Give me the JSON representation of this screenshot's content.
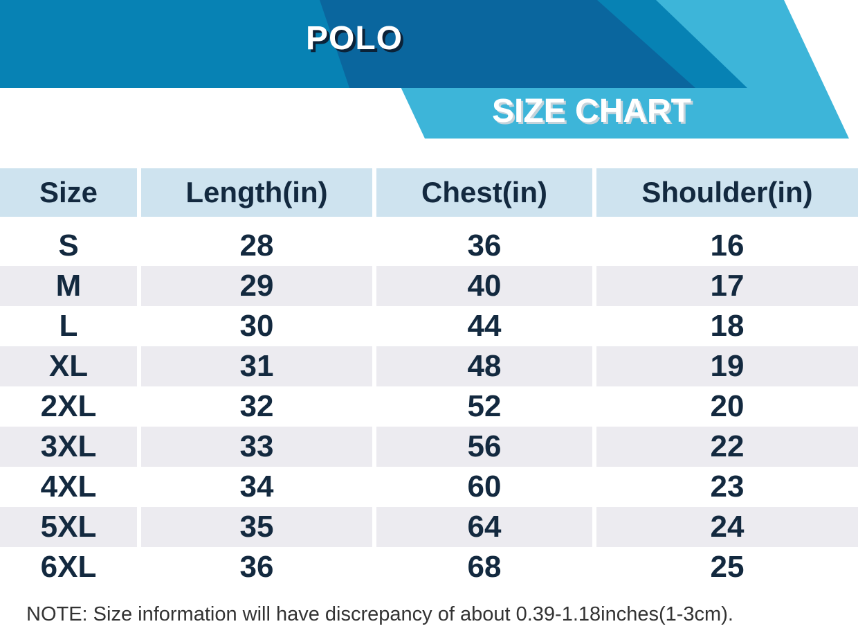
{
  "banner": {
    "brand": "POLO",
    "title": "SIZE CHART"
  },
  "chart_data": {
    "type": "table",
    "title": "SIZE CHART",
    "subtitle": "POLO",
    "columns": [
      "Size",
      "Length(in)",
      "Chest(in)",
      "Shoulder(in)"
    ],
    "rows": [
      [
        "S",
        "28",
        "36",
        "16"
      ],
      [
        "M",
        "29",
        "40",
        "17"
      ],
      [
        "L",
        "30",
        "44",
        "18"
      ],
      [
        "XL",
        "31",
        "48",
        "19"
      ],
      [
        "2XL",
        "32",
        "52",
        "20"
      ],
      [
        "3XL",
        "33",
        "56",
        "22"
      ],
      [
        "4XL",
        "34",
        "60",
        "23"
      ],
      [
        "5XL",
        "35",
        "64",
        "24"
      ],
      [
        "6XL",
        "36",
        "68",
        "25"
      ]
    ],
    "layout": {
      "stripe_pattern": "even rows shaded",
      "header_row_shaded": true,
      "grid": "white column gaps, no borders"
    }
  },
  "note": "NOTE: Size information will have discrepancy of about 0.39-1.18inches(1-3cm).",
  "colors": {
    "banner-blue": "#0782B4",
    "banner-dark": "#0A669E",
    "cyan": "#3DB5D9",
    "header-bg": "#CEE3EF",
    "stripe-bg": "#ECEBF0",
    "navy": "#13293F",
    "note-color": "#333333",
    "polo-shadow": "#0B2238",
    "title-shadow": "#C4D3DB"
  }
}
